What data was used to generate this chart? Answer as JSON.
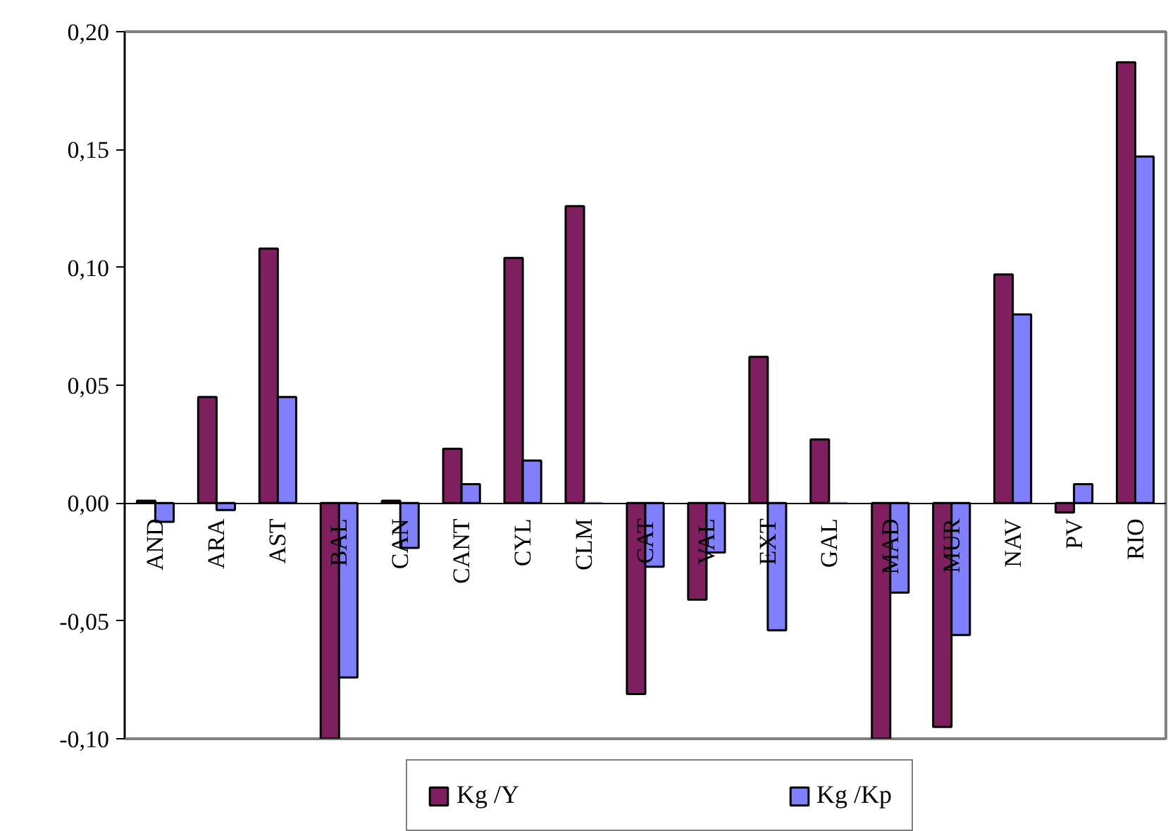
{
  "chart_data": {
    "type": "bar",
    "categories": [
      "AND",
      "ARA",
      "AST",
      "BAL",
      "CAN",
      "CANT",
      "CYL",
      "CLM",
      "CAT",
      "VAL",
      "EXT",
      "GAL",
      "MAD",
      "MUR",
      "NAV",
      "PV",
      "RIO"
    ],
    "series": [
      {
        "name": "Kg /Y",
        "color": "#801f60",
        "values": [
          0.001,
          0.045,
          0.108,
          -0.1,
          0.001,
          0.023,
          0.104,
          0.126,
          -0.081,
          -0.041,
          0.062,
          0.027,
          -0.1,
          -0.095,
          0.097,
          -0.004,
          0.187
        ]
      },
      {
        "name": "Kg /Kp",
        "color": "#8080ff",
        "values": [
          -0.008,
          -0.003,
          0.045,
          -0.074,
          -0.019,
          0.008,
          0.018,
          0,
          -0.027,
          -0.021,
          -0.054,
          0,
          -0.038,
          -0.056,
          0.08,
          0.008,
          0.147
        ]
      }
    ],
    "ylim": [
      -0.1,
      0.2
    ],
    "yticks": [
      {
        "value": -0.1,
        "label": "-0,10"
      },
      {
        "value": -0.05,
        "label": "-0,05"
      },
      {
        "value": 0,
        "label": "0,00"
      },
      {
        "value": 0.05,
        "label": "0,05"
      },
      {
        "value": 0.1,
        "label": "0,10"
      },
      {
        "value": 0.15,
        "label": "0,15"
      },
      {
        "value": 0.2,
        "label": "0,20"
      }
    ],
    "grid": false,
    "legend": "bottom"
  }
}
